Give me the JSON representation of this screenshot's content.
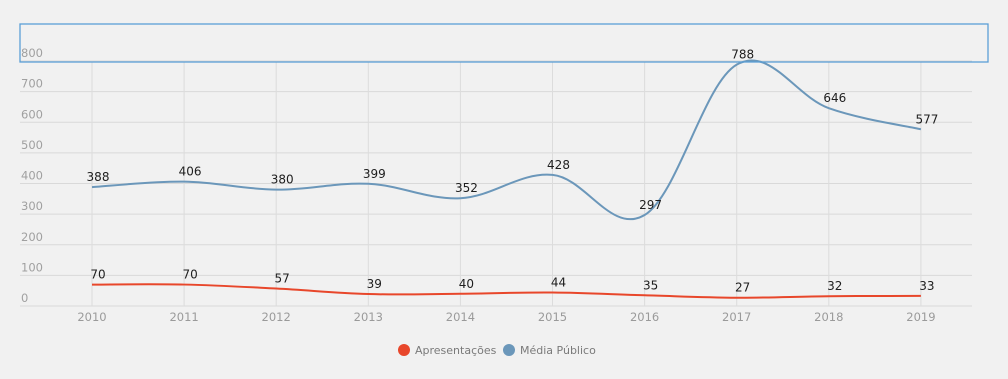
{
  "chart_data": {
    "type": "line",
    "title": "",
    "xlabel": "",
    "ylabel": "",
    "categories": [
      "2010",
      "2011",
      "2012",
      "2013",
      "2014",
      "2015",
      "2016",
      "2017",
      "2018",
      "2019"
    ],
    "ylim": [
      0,
      800
    ],
    "yticks": [
      "0",
      "100",
      "200",
      "300",
      "400",
      "500",
      "600",
      "700",
      "800"
    ],
    "grid": true,
    "legend_position": "bottom",
    "series": [
      {
        "name": "Apresentações",
        "color": "#e8472b",
        "values": [
          70,
          70,
          57,
          39,
          40,
          44,
          35,
          27,
          32,
          33
        ]
      },
      {
        "name": "Média Público",
        "color": "#6b97ba",
        "values": [
          388,
          406,
          380,
          399,
          352,
          428,
          297,
          788,
          646,
          577
        ]
      }
    ]
  }
}
